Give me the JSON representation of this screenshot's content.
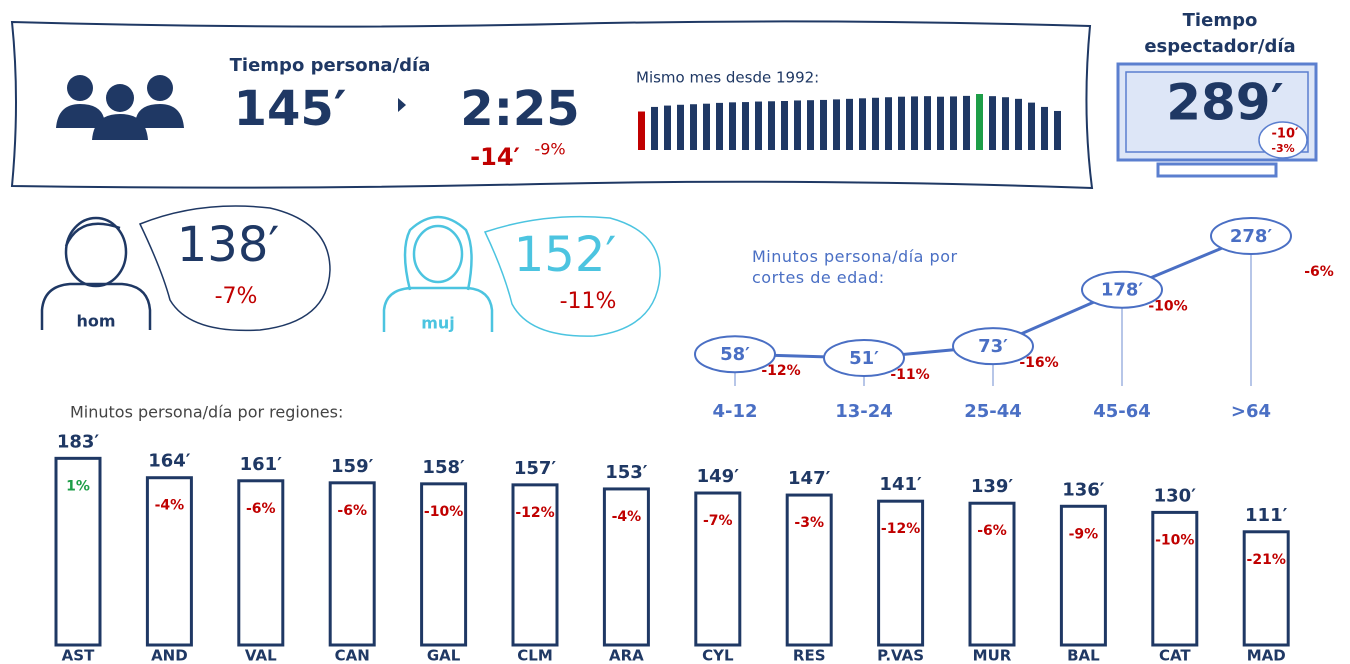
{
  "header": {
    "title": "Tiempo persona/día",
    "value": "145′",
    "value_alt": "2:25",
    "change": "-14′",
    "change_pct": "-9%"
  },
  "history": {
    "label": "Mismo mes desde 1992:",
    "values": [
      143,
      160,
      165,
      168,
      170,
      172,
      175,
      177,
      178,
      180,
      181,
      182,
      184,
      185,
      186,
      188,
      190,
      192,
      194,
      196,
      198,
      199,
      200,
      198,
      199,
      201,
      208,
      200,
      196,
      190,
      176,
      160,
      145
    ],
    "color": "#1f3864",
    "min_color": "#c00000",
    "max_color": "#1e9e48"
  },
  "spectator": {
    "title": "Tiempo espectador/día",
    "value": "289′",
    "change": "-10′",
    "change_pct": "-3%"
  },
  "gender": [
    {
      "label": "hom",
      "value": "138′",
      "change": "-7%"
    },
    {
      "label": "muj",
      "value": "152′",
      "change": "-11%"
    }
  ],
  "age": {
    "type": "line",
    "title": "Minutos persona/día por cortes de edad:",
    "categories": [
      "4-12",
      "13-24",
      "25-44",
      "45-64",
      ">64"
    ],
    "values": [
      58,
      51,
      73,
      178,
      278
    ],
    "value_labels": [
      "58′",
      "51′",
      "73′",
      "178′",
      "278′"
    ],
    "changes": [
      "-12%",
      "-11%",
      "-16%",
      "-10%",
      "-6%"
    ],
    "color": "#4a6fc4"
  },
  "regions": {
    "type": "bar",
    "title": "Minutos persona/día por regiones:",
    "categories": [
      "AST",
      "AND",
      "VAL",
      "CAN",
      "GAL",
      "CLM",
      "ARA",
      "CYL",
      "RES",
      "P.VAS",
      "MUR",
      "BAL",
      "CAT",
      "MAD"
    ],
    "values": [
      183,
      164,
      161,
      159,
      158,
      157,
      153,
      149,
      147,
      141,
      139,
      136,
      130,
      111
    ],
    "value_labels": [
      "183′",
      "164′",
      "161′",
      "159′",
      "158′",
      "157′",
      "153′",
      "149′",
      "147′",
      "141′",
      "139′",
      "136′",
      "130′",
      "111′"
    ],
    "changes": [
      "1%",
      "-4%",
      "-6%",
      "-6%",
      "-10%",
      "-12%",
      "-4%",
      "-7%",
      "-3%",
      "-12%",
      "-6%",
      "-9%",
      "-10%",
      "-21%"
    ],
    "color": "#1f3864",
    "up_color": "#1e9e48",
    "down_color": "#c00000"
  }
}
